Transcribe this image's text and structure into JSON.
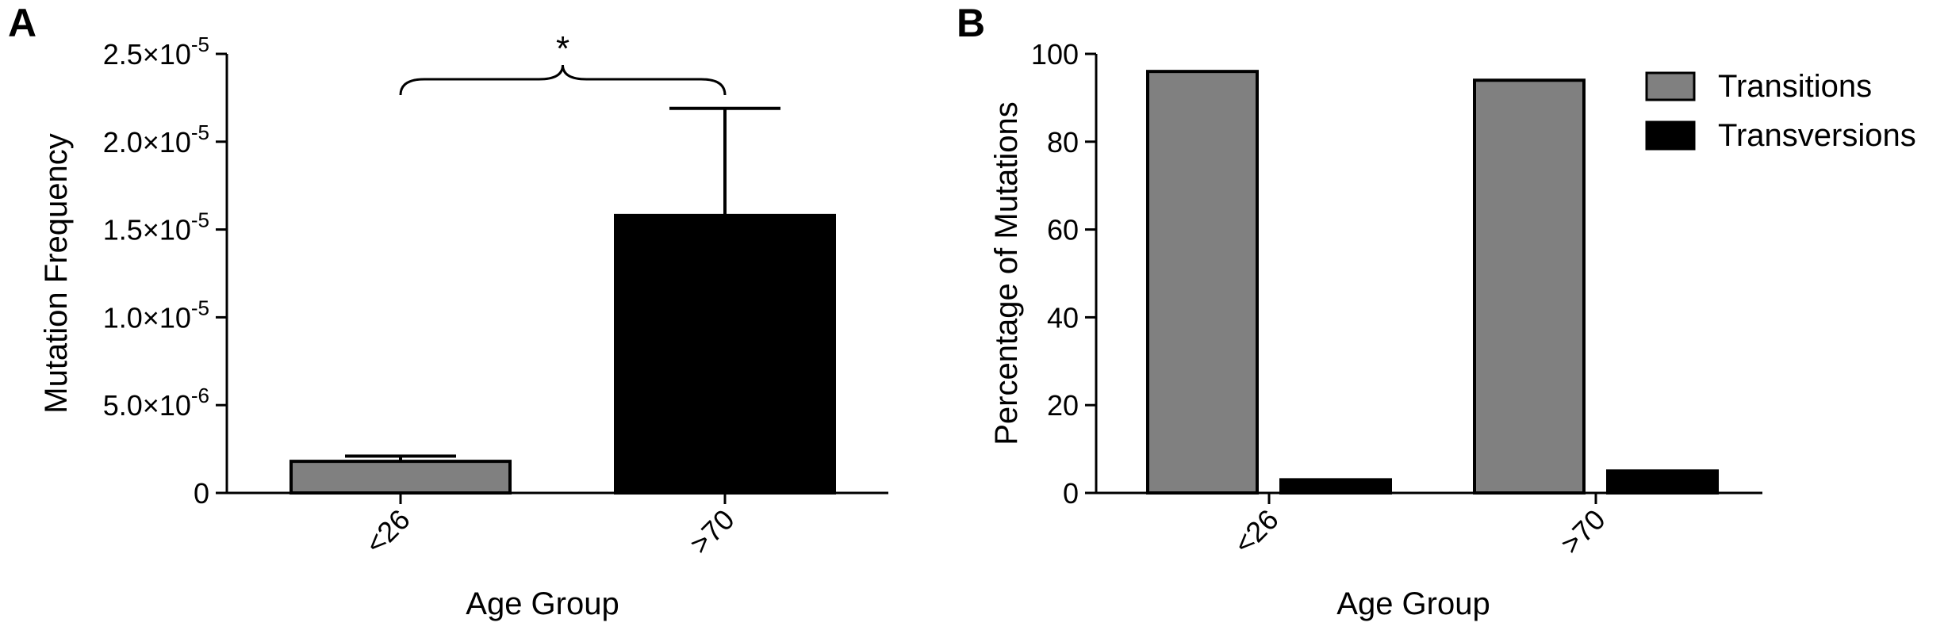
{
  "chart_data": [
    {
      "panel": "A",
      "type": "bar",
      "categories": [
        "<26",
        ">70"
      ],
      "values": [
        1.8e-06,
        1.58e-05
      ],
      "error_upper": [
        2.1e-06,
        2.19e-05
      ],
      "colors": [
        "#808080",
        "#000000"
      ],
      "xlabel": "Age Group",
      "ylabel": "Mutation Frequency",
      "ylim": [
        0,
        2.5e-05
      ],
      "yticks": [
        {
          "value": 0,
          "mantissa": "0",
          "exponent": ""
        },
        {
          "value": 5e-06,
          "mantissa": "5.0×10",
          "exponent": "-6"
        },
        {
          "value": 1e-05,
          "mantissa": "1.0×10",
          "exponent": "-5"
        },
        {
          "value": 1.5e-05,
          "mantissa": "1.5×10",
          "exponent": "-5"
        },
        {
          "value": 2e-05,
          "mantissa": "2.0×10",
          "exponent": "-5"
        },
        {
          "value": 2.5e-05,
          "mantissa": "2.5×10",
          "exponent": "-5"
        }
      ],
      "significance": {
        "label": "*",
        "between": [
          "<26",
          ">70"
        ]
      },
      "grid": false
    },
    {
      "panel": "B",
      "type": "bar",
      "categories": [
        "<26",
        ">70"
      ],
      "series": [
        {
          "name": "Transitions",
          "values": [
            96,
            94
          ],
          "color": "#808080"
        },
        {
          "name": "Transversions",
          "values": [
            3,
            5
          ],
          "color": "#000000"
        }
      ],
      "xlabel": "Age Group",
      "ylabel": "Percentage of Mutations",
      "ylim": [
        0,
        100
      ],
      "yticks": [
        0,
        20,
        40,
        60,
        80,
        100
      ],
      "legend": "top-right",
      "grid": false
    }
  ]
}
